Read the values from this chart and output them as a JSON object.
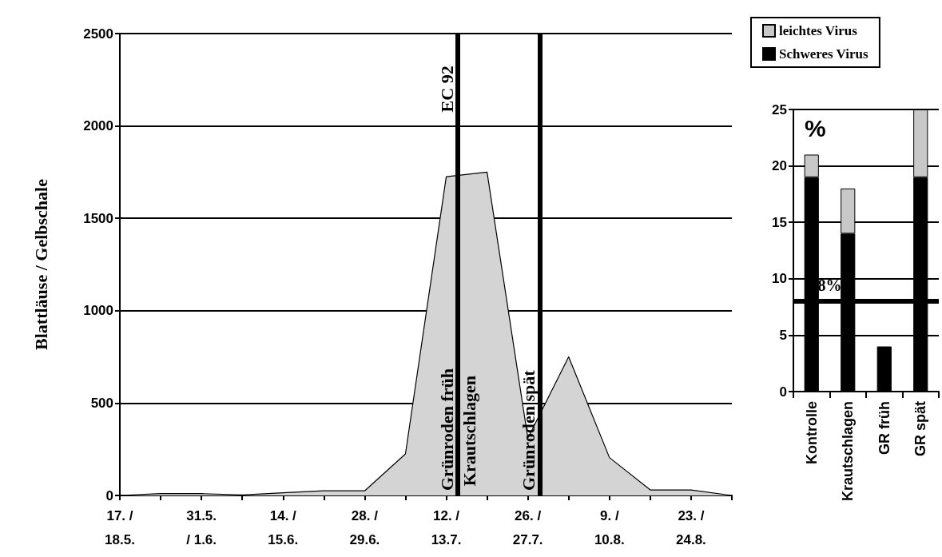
{
  "chart_data": [
    {
      "type": "area",
      "ylabel": "Blattläuse / Gelbschale",
      "x": [
        "--05-17",
        "--05-24",
        "--05-31",
        "--06-07",
        "--06-14",
        "--06-21",
        "--06-28",
        "--07-05",
        "--07-12",
        "--07-19",
        "--07-26",
        "--08-02",
        "--08-09",
        "--08-16",
        "--08-23",
        "--08-30"
      ],
      "values": [
        0,
        10,
        10,
        3,
        15,
        25,
        25,
        225,
        1725,
        1750,
        310,
        750,
        205,
        30,
        30,
        0
      ],
      "color": "#d4d4d4",
      "xlim": [
        "--05-17",
        "--08-30"
      ],
      "xticks": [
        {
          "value": "--05-17",
          "label": "17. /\n18.5."
        },
        {
          "value": "--05-24",
          "label": null
        },
        {
          "value": "--05-31",
          "label": "31.5.\n/ 1.6."
        },
        {
          "value": "--06-07",
          "label": null
        },
        {
          "value": "--06-14",
          "label": "14. /\n15.6."
        },
        {
          "value": "--06-21",
          "label": null
        },
        {
          "value": "--06-28",
          "label": "28. /\n29.6."
        },
        {
          "value": "--07-05",
          "label": null
        },
        {
          "value": "--07-12",
          "label": "12. /\n13.7."
        },
        {
          "value": "--07-19",
          "label": null
        },
        {
          "value": "--07-26",
          "label": "26. /\n27.7."
        },
        {
          "value": "--08-02",
          "label": null
        },
        {
          "value": "--08-09",
          "label": "9. /\n10.8."
        },
        {
          "value": "--08-16",
          "label": null
        },
        {
          "value": "--08-23",
          "label": "23. /\n24.8."
        },
        {
          "value": "--08-30",
          "label": null
        }
      ],
      "ylim": [
        0,
        2500
      ],
      "yticks": [
        0,
        500,
        1000,
        1500,
        2000,
        2500
      ],
      "grid": "y",
      "ref_lines": [
        {
          "axis": "x",
          "value": "--07-14",
          "label": "Grünroden früh"
        },
        {
          "axis": "x",
          "value": "--07-28",
          "label": "Grünroden spät"
        }
      ],
      "annotations": [
        {
          "text": "EC 92",
          "x": "--07-14",
          "y": 2200
        },
        {
          "text": "Krautschlagen",
          "x": "--07-14",
          "y": 350
        }
      ]
    },
    {
      "type": "bar",
      "stacked": true,
      "legend": "top",
      "categories": [
        "Kontrolle",
        "Krautschlagen",
        "GR früh",
        "GR spät"
      ],
      "series": [
        {
          "name": "Schweres Virus",
          "color": "#000000",
          "values": [
            19,
            14,
            4,
            19
          ]
        },
        {
          "name": "leichtes Virus",
          "color": "#c8c8c8",
          "values": [
            2,
            4,
            0,
            6
          ]
        }
      ],
      "ylim": [
        0,
        25
      ],
      "yticks": [
        0,
        5,
        10,
        15,
        20,
        25
      ],
      "grid": "y",
      "ref_lines": [
        {
          "axis": "y",
          "value": 8,
          "label": "8%"
        }
      ],
      "annotations": [
        "%"
      ]
    }
  ]
}
